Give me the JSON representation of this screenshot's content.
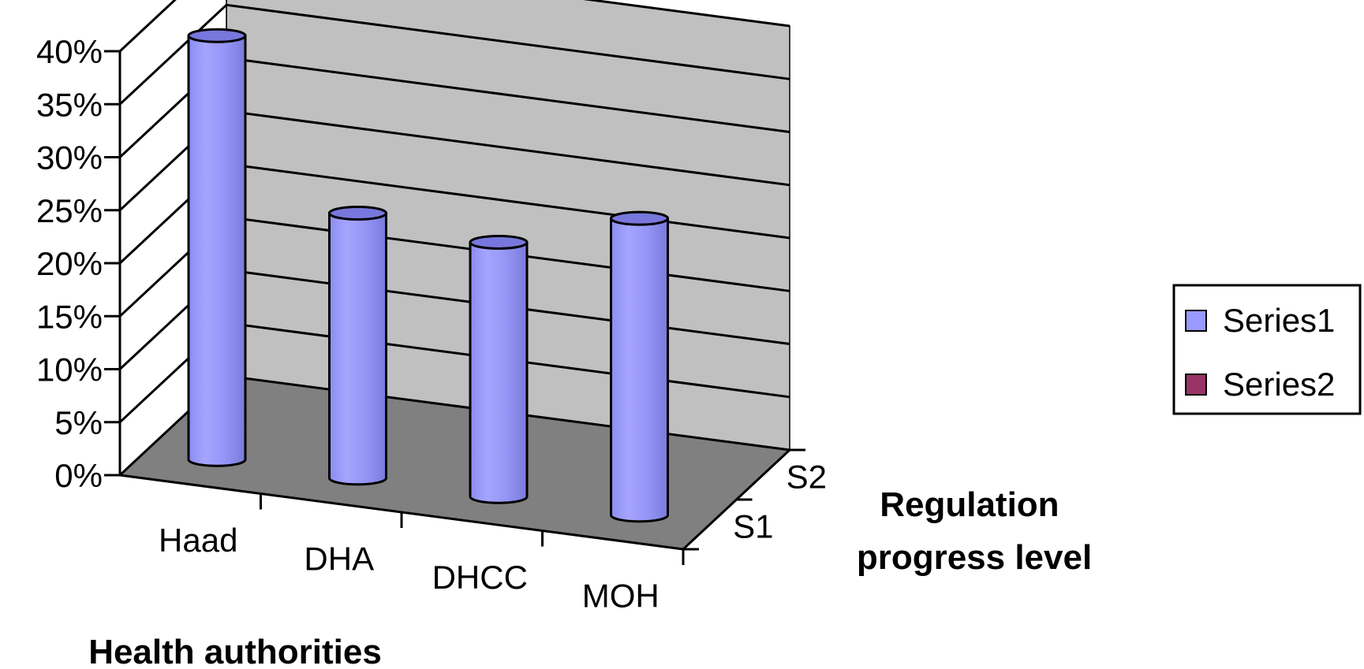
{
  "chart_data": {
    "type": "bar",
    "style": "3d-cylinder",
    "categories": [
      "Haad",
      "DHA",
      "DHCC",
      "MOH"
    ],
    "depth_categories": [
      "S1",
      "S2"
    ],
    "series": [
      {
        "name": "Series1",
        "depth": "S1",
        "values": [
          0.4,
          0.25,
          0.24,
          0.28
        ]
      },
      {
        "name": "Series2",
        "depth": "S2",
        "values": [
          0,
          0,
          0,
          0
        ]
      }
    ],
    "ylim": [
      0,
      0.4
    ],
    "yticks": [
      0,
      0.05,
      0.1,
      0.15,
      0.2,
      0.25,
      0.3,
      0.35,
      0.4
    ],
    "ytick_labels": [
      "0%",
      "5%",
      "10%",
      "15%",
      "20%",
      "25%",
      "30%",
      "35%",
      "40%"
    ],
    "xlabel": "Health authorities",
    "zlabel_lines": [
      "Regulation",
      "progress level"
    ],
    "grid": true,
    "legend_position": "right",
    "colors": {
      "series1": "#9999FF",
      "series1_top": "#7777DD",
      "series2": "#993366",
      "back_wall": "#C0C0C0",
      "floor": "#808080"
    }
  }
}
